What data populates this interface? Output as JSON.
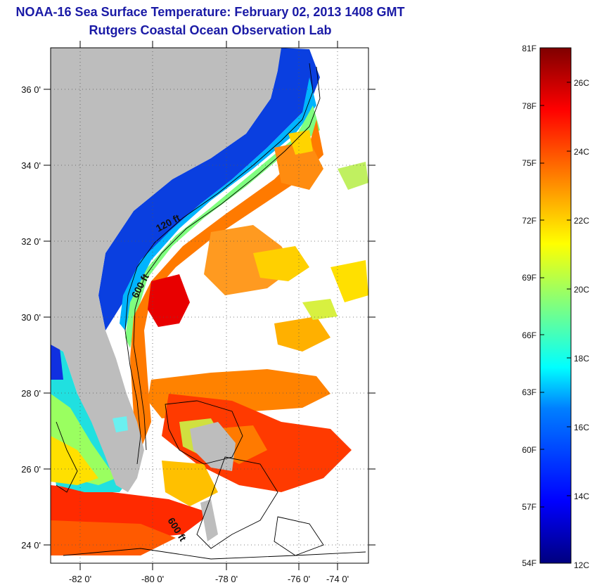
{
  "header": {
    "title": "NOAA-16 Sea Surface Temperature:  February 02, 2013 1408 GMT",
    "subtitle": "Rutgers Coastal Ocean Observation Lab"
  },
  "map": {
    "lat_ticks": [
      "36 0'",
      "34 0'",
      "32 0'",
      "30 0'",
      "28 0'",
      "26 0'",
      "24 0'"
    ],
    "lon_ticks": [
      "-82 0'",
      "-80 0'",
      "-78 0'",
      "-76 0'",
      "-74 0'"
    ],
    "contour_labels": [
      "120 ft",
      "600 ft",
      "600 ft"
    ],
    "colors": {
      "land": "#bdbdbd",
      "cloud": "#ffffff",
      "contour": "#000000"
    }
  },
  "colorbar": {
    "fahrenheit_labels": [
      "81F",
      "78F",
      "75F",
      "72F",
      "69F",
      "66F",
      "63F",
      "60F",
      "57F",
      "54F"
    ],
    "celsius_labels": [
      "26C",
      "24C",
      "22C",
      "20C",
      "18C",
      "16C",
      "14C",
      "12C"
    ],
    "range_f": [
      54,
      81
    ],
    "palette": [
      "#00007f",
      "#0000ff",
      "#007fff",
      "#00ffff",
      "#7fff7f",
      "#ffff00",
      "#ff7f00",
      "#ff0000",
      "#7f0000"
    ]
  }
}
